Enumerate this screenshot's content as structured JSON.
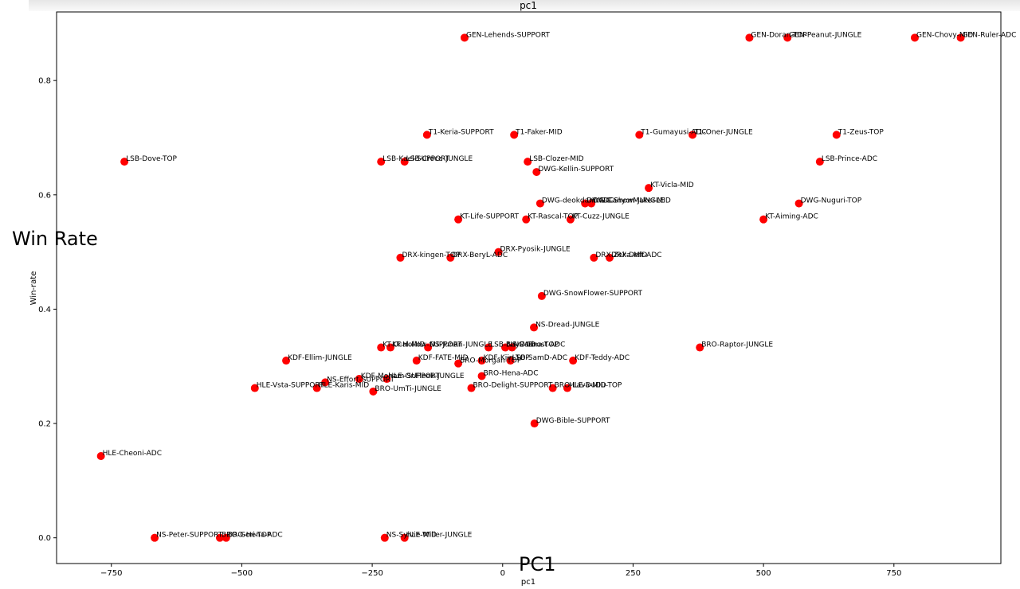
{
  "overlay": {
    "y_label": "Win Rate",
    "x_label": "PC1"
  },
  "chart_data": {
    "type": "scatter",
    "title": "pc1",
    "xlabel": "pc1",
    "ylabel": "Win-rate",
    "xlim": [
      -855,
      955
    ],
    "ylim": [
      -0.045,
      0.92
    ],
    "xticks": [
      -750,
      -500,
      -250,
      0,
      250,
      500,
      750
    ],
    "yticks": [
      0.0,
      0.2,
      0.4,
      0.6,
      0.8
    ],
    "grid": false,
    "marker_color": "#ff0000",
    "points": [
      {
        "label": "GEN-Lehends-SUPPORT",
        "x": -73,
        "y": 0.875
      },
      {
        "label": "GEN-Doran-TOP",
        "x": 473,
        "y": 0.875
      },
      {
        "label": "GEN-Peanut-JUNGLE",
        "x": 546,
        "y": 0.875
      },
      {
        "label": "GEN-Chovy-MID",
        "x": 790,
        "y": 0.875
      },
      {
        "label": "GEN-Ruler-ADC",
        "x": 878,
        "y": 0.875
      },
      {
        "label": "T1-Keria-SUPPORT",
        "x": -145,
        "y": 0.705
      },
      {
        "label": "T1-Faker-MID",
        "x": 22,
        "y": 0.705
      },
      {
        "label": "T1-Gumayusi-ADC",
        "x": 262,
        "y": 0.705
      },
      {
        "label": "T1-Oner-JUNGLE",
        "x": 364,
        "y": 0.705
      },
      {
        "label": "T1-Zeus-TOP",
        "x": 640,
        "y": 0.705
      },
      {
        "label": "LSB-Dove-TOP",
        "x": -725,
        "y": 0.658
      },
      {
        "label": "LSB-Kael-SUPPORT",
        "x": -233,
        "y": 0.658
      },
      {
        "label": "LSB-Croco-JUNGLE",
        "x": -188,
        "y": 0.658
      },
      {
        "label": "LSB-Clozer-MID",
        "x": 48,
        "y": 0.658
      },
      {
        "label": "LSB-Prince-ADC",
        "x": 608,
        "y": 0.658
      },
      {
        "label": "DWG-Kellin-SUPPORT",
        "x": 65,
        "y": 0.64
      },
      {
        "label": "KT-Vicla-MID",
        "x": 280,
        "y": 0.612
      },
      {
        "label": "DWG-deokdam-ADC",
        "x": 72,
        "y": 0.585
      },
      {
        "label": "DWG-Canyon-JUNGLE",
        "x": 158,
        "y": 0.585
      },
      {
        "label": "DWG-ShowMaker-MID",
        "x": 170,
        "y": 0.585
      },
      {
        "label": "DWG-Nuguri-TOP",
        "x": 568,
        "y": 0.585
      },
      {
        "label": "KT-Life-SUPPORT",
        "x": -85,
        "y": 0.557
      },
      {
        "label": "KT-Rascal-TOP",
        "x": 45,
        "y": 0.557
      },
      {
        "label": "KT-Cuzz-JUNGLE",
        "x": 130,
        "y": 0.557
      },
      {
        "label": "KT-Aiming-ADC",
        "x": 500,
        "y": 0.557
      },
      {
        "label": "DRX-Pyosik-JUNGLE",
        "x": -8,
        "y": 0.5
      },
      {
        "label": "DRX-kingen-TOP",
        "x": -196,
        "y": 0.49
      },
      {
        "label": "DRX-BeryL-ADC",
        "x": -100,
        "y": 0.49
      },
      {
        "label": "DRX-Zeka-MID",
        "x": 175,
        "y": 0.49
      },
      {
        "label": "DRX-Deft-ADC",
        "x": 205,
        "y": 0.49
      },
      {
        "label": "DWG-SnowFlower-SUPPORT",
        "x": 75,
        "y": 0.423
      },
      {
        "label": "NS-Dread-JUNGLE",
        "x": 60,
        "y": 0.368
      },
      {
        "label": "KT-Ucal-MID",
        "x": -233,
        "y": 0.333
      },
      {
        "label": "KT-Hollow-SUPPORT",
        "x": -215,
        "y": 0.333
      },
      {
        "label": "NS-Juhan-JUNGLE",
        "x": -143,
        "y": 0.333
      },
      {
        "label": "LSB-Bay-MID",
        "x": -27,
        "y": 0.333
      },
      {
        "label": "NS-Canna-TOP",
        "x": 5,
        "y": 0.333
      },
      {
        "label": "NS-Ghost-ADC",
        "x": 18,
        "y": 0.333
      },
      {
        "label": "BRO-Raptor-JUNGLE",
        "x": 378,
        "y": 0.333
      },
      {
        "label": "KDF-Ellim-JUNGLE",
        "x": -415,
        "y": 0.31
      },
      {
        "label": "KDF-FATE-MID",
        "x": -165,
        "y": 0.31
      },
      {
        "label": "BRO-Morgan-TOP",
        "x": -85,
        "y": 0.305
      },
      {
        "label": "KDF-Kiin-TOP",
        "x": -40,
        "y": 0.31
      },
      {
        "label": "LSB-SamD-ADC",
        "x": 15,
        "y": 0.31
      },
      {
        "label": "KDF-Teddy-ADC",
        "x": 135,
        "y": 0.31
      },
      {
        "label": "KDF-Moham-SUPPORT",
        "x": -275,
        "y": 0.278
      },
      {
        "label": "HLE-OnFleek-JUNGLE",
        "x": -222,
        "y": 0.278
      },
      {
        "label": "NS-Effort-SUPPORT",
        "x": -340,
        "y": 0.272
      },
      {
        "label": "BRO-Hena-ADC",
        "x": -40,
        "y": 0.283
      },
      {
        "label": "HLE-Vsta-SUPPORT",
        "x": -475,
        "y": 0.262
      },
      {
        "label": "HLE-Karis-MID",
        "x": -356,
        "y": 0.262
      },
      {
        "label": "BRO-UmTi-JUNGLE",
        "x": -248,
        "y": 0.256
      },
      {
        "label": "BRO-Delight-SUPPORT",
        "x": -60,
        "y": 0.262
      },
      {
        "label": "BRO-Lava-MID",
        "x": 96,
        "y": 0.262
      },
      {
        "label": "HLE-DuDu-TOP",
        "x": 124,
        "y": 0.262
      },
      {
        "label": "DWG-Bible-SUPPORT",
        "x": 61,
        "y": 0.2
      },
      {
        "label": "HLE-Cheoni-ADC",
        "x": -770,
        "y": 0.143
      },
      {
        "label": "NS-Peter-SUPPORT",
        "x": -667,
        "y": 0.0
      },
      {
        "label": "BRO-Gori-TOP",
        "x": -542,
        "y": 0.0
      },
      {
        "label": "BRO-Hena-ADC",
        "x": -530,
        "y": 0.0
      },
      {
        "label": "NS-Sylvie-MID",
        "x": -226,
        "y": 0.0
      },
      {
        "label": "HLE-Willer-JUNGLE",
        "x": -188,
        "y": 0.0
      }
    ]
  }
}
